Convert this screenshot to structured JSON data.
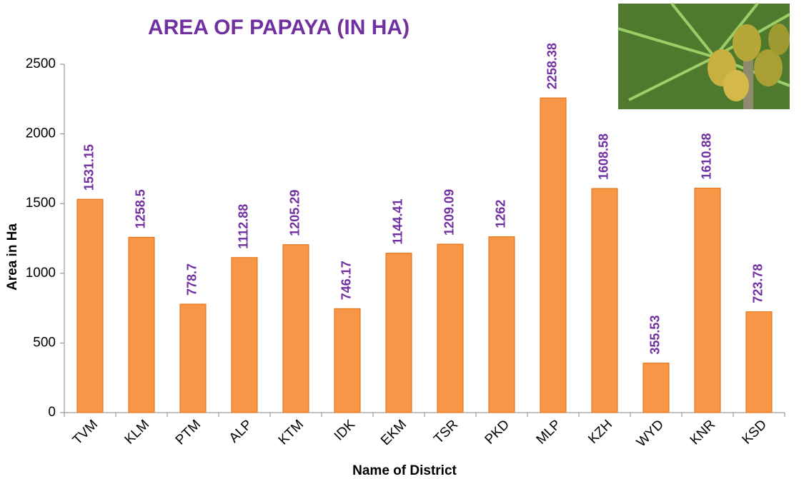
{
  "chart_data": {
    "type": "bar",
    "title": "AREA OF PAPAYA (IN HA)",
    "x_label": "Name of District",
    "y_label": "Area in Ha",
    "categories": [
      "TVM",
      "KLM",
      "PTM",
      "ALP",
      "KTM",
      "IDK",
      "EKM",
      "TSR",
      "PKD",
      "MLP",
      "KZH",
      "WYD",
      "KNR",
      "KSD"
    ],
    "values": [
      1531.15,
      1258.5,
      778.7,
      1112.88,
      1205.29,
      746.17,
      1144.41,
      1209.09,
      1262,
      2258.38,
      1608.58,
      355.53,
      1610.88,
      723.78
    ],
    "color": "#f79646",
    "label_color": "#7030a0",
    "ylim": [
      0,
      2500
    ],
    "yticks": [
      0,
      500,
      1000,
      1500,
      2000,
      2500
    ],
    "grid": false
  }
}
